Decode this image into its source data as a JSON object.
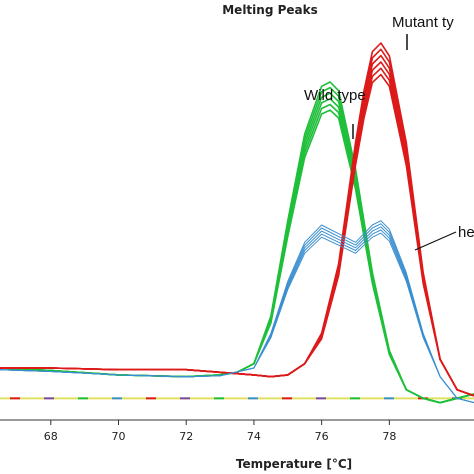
{
  "chart_data": {
    "type": "line",
    "title": "Melting Peaks",
    "xlabel": "Temperature [°C]",
    "ylabel": "",
    "xlim": [
      66.5,
      80.5
    ],
    "ylim": [
      -0.3,
      4.2
    ],
    "x_ticks": [
      "68",
      "70",
      "72",
      "74",
      "76",
      "78"
    ],
    "grid": false,
    "annotations": [
      "Mutant ty",
      "Wild type",
      "he"
    ],
    "colors": {
      "wild_type": "#1fbf3a",
      "mutant_type": "#dd1a1a",
      "heterozygote": "#3b8fd0",
      "baseline": "#e0e060"
    },
    "series": [
      {
        "x": [
          66.5,
          68,
          70,
          72,
          73,
          73.5,
          74,
          74.5,
          75,
          75.5,
          76,
          76.25,
          76.5,
          77,
          77.5,
          78,
          78.5,
          79,
          79.5,
          80,
          80.5
        ],
        "values": [
          0.3,
          0.27,
          0.22,
          0.2,
          0.22,
          0.25,
          0.35,
          0.9,
          2.0,
          3.0,
          3.55,
          3.6,
          3.5,
          2.6,
          1.4,
          0.5,
          0.05,
          -0.05,
          -0.1,
          -0.05,
          0.0
        ]
      },
      {
        "x": [
          66.5,
          68,
          70,
          72,
          74,
          74.5,
          75,
          75.5,
          76,
          76.5,
          77,
          77.25,
          77.5,
          77.75,
          78,
          78.5,
          79,
          79.5,
          80,
          80.5
        ],
        "values": [
          0.3,
          0.3,
          0.28,
          0.28,
          0.22,
          0.2,
          0.22,
          0.35,
          0.7,
          1.5,
          2.9,
          3.5,
          3.95,
          4.05,
          3.9,
          2.9,
          1.4,
          0.4,
          0.05,
          -0.02
        ]
      },
      {
        "x": [
          66.5,
          68,
          70,
          72,
          73,
          74,
          74.5,
          75,
          75.5,
          76,
          76.5,
          77,
          77.5,
          77.75,
          78,
          78.5,
          79,
          79.5,
          80,
          80.5
        ],
        "values": [
          0.28,
          0.26,
          0.22,
          0.2,
          0.21,
          0.3,
          0.7,
          1.3,
          1.75,
          1.95,
          1.85,
          1.75,
          1.95,
          2.0,
          1.9,
          1.4,
          0.7,
          0.2,
          -0.05,
          -0.1
        ]
      }
    ]
  }
}
